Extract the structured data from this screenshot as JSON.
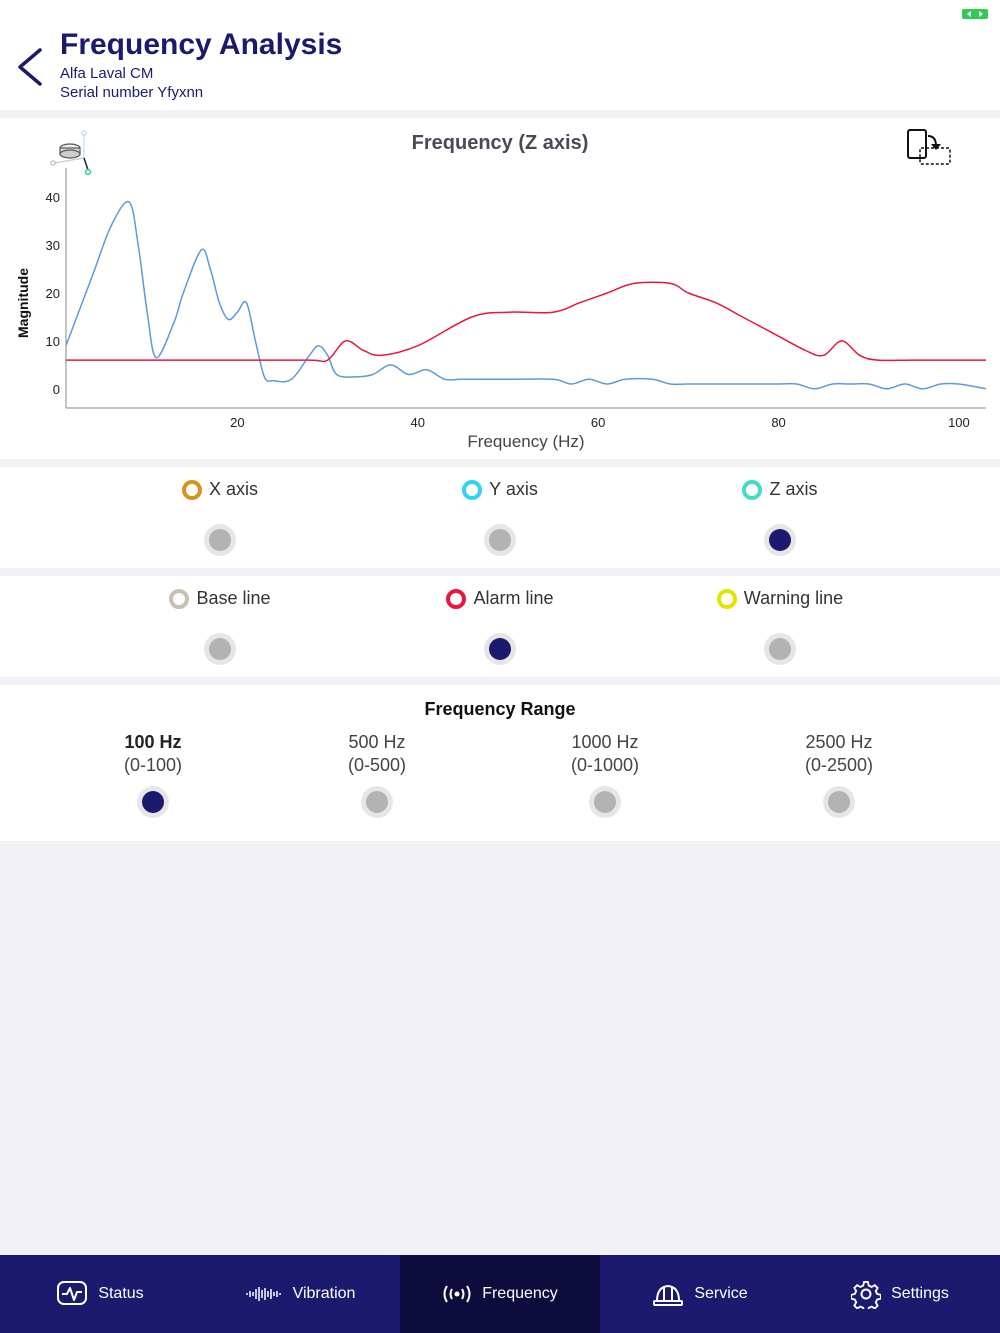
{
  "header": {
    "title": "Frequency Analysis",
    "subtitle_device": "Alfa Laval CM",
    "subtitle_serial": "Serial number Yfyxnn",
    "back_icon": "chevron-left-icon",
    "status_icon": "battery-icon"
  },
  "chart": {
    "title": "Frequency (Z axis)",
    "sensor_icon": "sensor-axes-icon",
    "rotate_icon": "rotate-device-icon"
  },
  "chart_data": {
    "type": "line",
    "title": "Frequency (Z axis)",
    "xlabel": "Frequency (Hz)",
    "ylabel": "Magnitude",
    "xlim": [
      1,
      103
    ],
    "ylim": [
      -4,
      44
    ],
    "xticks": [
      20,
      40,
      60,
      80,
      100
    ],
    "yticks": [
      0,
      10,
      20,
      30,
      40
    ],
    "grid": false,
    "legend": "none",
    "series": [
      {
        "color": "#5b9bdc",
        "x": [
          1,
          4,
          6,
          8,
          9,
          10,
          11,
          13,
          14,
          16,
          17,
          18,
          19,
          20,
          21,
          22,
          23,
          24,
          26,
          28,
          29,
          30,
          31,
          33,
          35,
          37,
          39,
          41,
          43,
          45,
          50,
          55,
          57,
          59,
          61,
          63,
          66,
          68,
          70,
          75,
          80,
          82,
          84,
          86,
          88,
          90,
          92,
          94,
          96,
          98,
          100,
          103
        ],
        "y": [
          9,
          24,
          34,
          39,
          30,
          16,
          6.5,
          14,
          20,
          29,
          25,
          18,
          14.5,
          16,
          18,
          10,
          2.5,
          1.7,
          2,
          7,
          9,
          7,
          3,
          2.5,
          3,
          5,
          3,
          4,
          2,
          2,
          2,
          2,
          1,
          2,
          1,
          2,
          2,
          1,
          1,
          1,
          1,
          1,
          0,
          1,
          1,
          1,
          0,
          1,
          0,
          1,
          1,
          0
        ]
      },
      {
        "color": "#e8173d",
        "x": [
          1,
          10,
          20,
          28,
          30,
          32,
          34,
          36,
          40,
          46,
          50,
          55,
          58,
          61,
          64,
          68,
          70,
          73,
          76,
          79,
          83,
          85,
          87,
          89,
          91,
          95,
          100,
          103
        ],
        "y": [
          6,
          6,
          6,
          6,
          6,
          10,
          8,
          7,
          9,
          15,
          16,
          16,
          18,
          20,
          22,
          22,
          20,
          18,
          15,
          12,
          8,
          7,
          10,
          7,
          6,
          6,
          6,
          6
        ]
      }
    ]
  },
  "axes": {
    "items": [
      {
        "label": "X axis",
        "ring_color": "#d4951c",
        "selected": false
      },
      {
        "label": "Y axis",
        "ring_color": "#33d1f3",
        "selected": false
      },
      {
        "label": "Z axis",
        "ring_color": "#45dcc4",
        "selected": true
      }
    ]
  },
  "lines": {
    "items": [
      {
        "label": "Base line",
        "ring_color": "#c9bfb2",
        "selected": false
      },
      {
        "label": "Alarm line",
        "ring_color": "#e8173d",
        "selected": true
      },
      {
        "label": "Warning line",
        "ring_color": "#e4e400",
        "selected": false
      }
    ]
  },
  "range": {
    "title": "Frequency Range",
    "options": [
      {
        "label": "100 Hz",
        "sublabel": "(0-100)",
        "selected": true
      },
      {
        "label": "500 Hz",
        "sublabel": "(0-500)",
        "selected": false
      },
      {
        "label": "1000 Hz",
        "sublabel": "(0-1000)",
        "selected": false
      },
      {
        "label": "2500 Hz",
        "sublabel": "(0-2500)",
        "selected": false
      }
    ]
  },
  "tabs": [
    {
      "label": "Status",
      "icon": "status-monitor-icon",
      "active": false
    },
    {
      "label": "Vibration",
      "icon": "waveform-icon",
      "active": false
    },
    {
      "label": "Frequency",
      "icon": "broadcast-icon",
      "active": true
    },
    {
      "label": "Service",
      "icon": "hard-hat-icon",
      "active": false
    },
    {
      "label": "Settings",
      "icon": "gear-icon",
      "active": false
    }
  ]
}
